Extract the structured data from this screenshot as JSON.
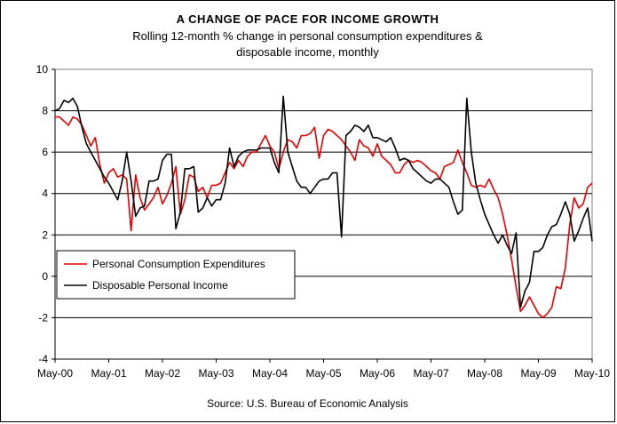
{
  "chart_data": {
    "type": "line",
    "title": "A CHANGE OF PACE FOR INCOME GROWTH",
    "subtitle_lines": [
      "Rolling 12-month % change in personal consumption expenditures &",
      "disposable income, monthly"
    ],
    "source": "Source: U.S. Bureau of Economic Analysis",
    "xlabel": "",
    "ylabel": "",
    "ylim": [
      -4,
      10
    ],
    "yticks": [
      -4,
      -2,
      0,
      2,
      4,
      6,
      8,
      10
    ],
    "x_tick_labels": [
      "May-00",
      "May-01",
      "May-02",
      "May-03",
      "May-04",
      "May-05",
      "May-06",
      "May-07",
      "May-08",
      "May-09",
      "May-10"
    ],
    "x_count": 121,
    "grid": true,
    "legend_position": "lower-left",
    "series": [
      {
        "name": "Personal Consumption Expenditures",
        "color": "#e60000",
        "values": [
          7.7,
          7.7,
          7.5,
          7.3,
          7.7,
          7.6,
          7.3,
          6.8,
          6.3,
          6.7,
          5.4,
          4.5,
          5.0,
          5.2,
          4.8,
          4.9,
          4.7,
          2.2,
          4.9,
          3.8,
          3.2,
          3.5,
          3.8,
          4.3,
          3.5,
          3.9,
          4.5,
          5.3,
          3.0,
          3.7,
          4.9,
          4.8,
          4.1,
          4.3,
          3.8,
          4.4,
          4.4,
          4.5,
          5.0,
          5.5,
          5.2,
          5.6,
          5.3,
          5.8,
          6.0,
          6.0,
          6.4,
          6.8,
          6.3,
          6.0,
          5.2,
          6.0,
          6.6,
          6.5,
          6.2,
          6.8,
          6.8,
          6.9,
          7.2,
          5.7,
          6.8,
          7.1,
          7.0,
          6.8,
          6.6,
          6.3,
          6.0,
          5.6,
          6.6,
          6.3,
          6.2,
          5.8,
          6.4,
          5.8,
          5.6,
          5.4,
          5.0,
          5.0,
          5.4,
          5.6,
          5.5,
          5.6,
          5.5,
          5.3,
          5.1,
          5.0,
          4.7,
          5.3,
          5.4,
          5.5,
          6.1,
          5.5,
          5.0,
          4.4,
          4.3,
          4.4,
          4.3,
          4.7,
          4.2,
          3.8,
          3.0,
          2.0,
          0.8,
          -0.5,
          -1.7,
          -1.4,
          -1.0,
          -1.4,
          -1.8,
          -2.0,
          -1.8,
          -1.5,
          -0.5,
          -0.6,
          0.4,
          2.5,
          3.8,
          3.3,
          3.5,
          4.3,
          4.5
        ]
      },
      {
        "name": "Disposable Personal Income",
        "color": "#000000",
        "values": [
          8.0,
          8.1,
          8.5,
          8.4,
          8.6,
          8.2,
          7.2,
          6.4,
          6.0,
          5.6,
          5.2,
          4.8,
          4.5,
          4.1,
          3.7,
          4.6,
          6.0,
          4.6,
          2.9,
          3.3,
          3.4,
          4.6,
          4.6,
          4.7,
          5.6,
          5.9,
          5.9,
          2.3,
          3.1,
          5.2,
          5.2,
          5.3,
          3.1,
          3.3,
          3.8,
          3.4,
          3.7,
          3.7,
          4.5,
          6.2,
          5.3,
          5.8,
          6.0,
          6.1,
          6.1,
          6.1,
          6.2,
          6.2,
          6.2,
          5.5,
          5.0,
          8.7,
          6.0,
          5.3,
          4.6,
          4.3,
          4.3,
          4.0,
          4.3,
          4.6,
          4.7,
          4.7,
          5.0,
          5.0,
          1.9,
          6.8,
          7.0,
          7.3,
          7.2,
          7.0,
          7.3,
          6.7,
          6.7,
          6.6,
          6.5,
          6.7,
          6.2,
          5.6,
          5.7,
          5.6,
          5.2,
          5.0,
          4.8,
          4.6,
          4.5,
          4.7,
          4.7,
          4.5,
          4.3,
          3.6,
          3.0,
          3.2,
          8.6,
          6.0,
          4.5,
          3.7,
          3.0,
          2.5,
          2.0,
          1.6,
          2.0,
          1.5,
          1.1,
          2.1,
          -1.5,
          -0.7,
          -0.3,
          1.2,
          1.2,
          1.4,
          2.0,
          2.4,
          2.5,
          3.0,
          3.6,
          3.0,
          1.7,
          2.2,
          2.8,
          3.3,
          1.7
        ]
      }
    ]
  }
}
